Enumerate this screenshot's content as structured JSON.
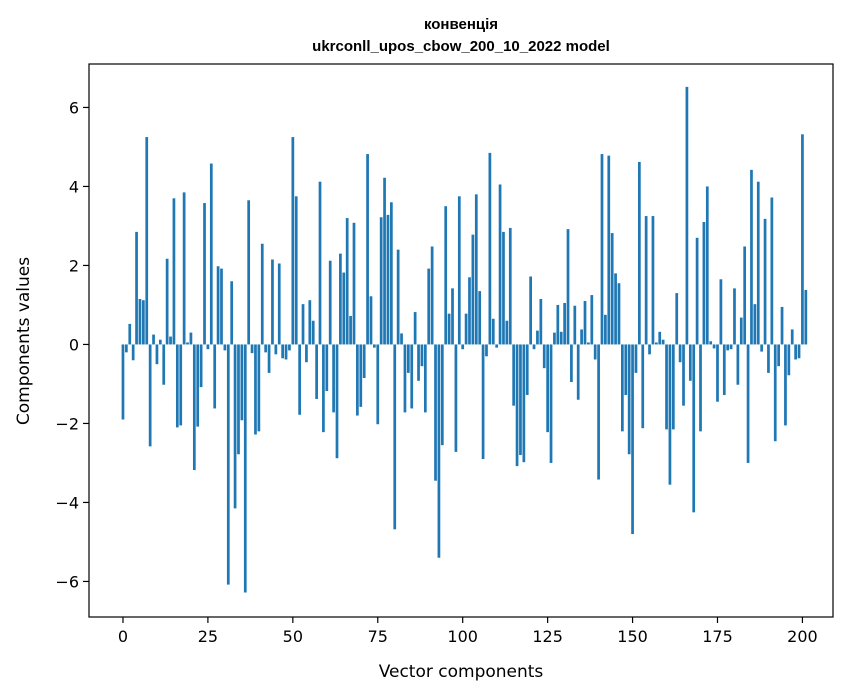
{
  "chart_data": {
    "type": "bar",
    "title": "конвенція",
    "subtitle": "ukrconll_upos_cbow_200_10_2022 model",
    "xlabel": "Vector components",
    "ylabel": "Components values",
    "xlim": [
      -10,
      209
    ],
    "ylim": [
      -6.9,
      7.1
    ],
    "xticks": [
      0,
      25,
      50,
      75,
      100,
      125,
      150,
      175,
      200
    ],
    "yticks": [
      -6,
      -4,
      -2,
      0,
      2,
      4,
      6
    ],
    "xtick_labels": [
      "0",
      "25",
      "50",
      "75",
      "100",
      "125",
      "150",
      "175",
      "200"
    ],
    "ytick_labels": [
      "−6",
      "−4",
      "−2",
      "0",
      "2",
      "4",
      "6"
    ],
    "bar_color": "#1f77b4",
    "grid": false,
    "legend": false,
    "values": [
      -1.9,
      -0.2,
      0.52,
      -0.4,
      2.85,
      1.15,
      1.12,
      5.25,
      -2.58,
      0.25,
      -0.5,
      0.12,
      -1.02,
      2.17,
      0.2,
      3.7,
      -2.1,
      -2.05,
      3.85,
      0.05,
      0.3,
      -3.18,
      -2.08,
      -1.08,
      3.58,
      -0.12,
      4.58,
      -1.62,
      1.98,
      1.92,
      -0.15,
      -6.08,
      1.6,
      -4.15,
      -2.78,
      -1.92,
      -6.28,
      3.65,
      -0.22,
      -2.28,
      -2.2,
      2.55,
      -0.2,
      -0.72,
      2.15,
      -0.25,
      2.05,
      -0.35,
      -0.38,
      -0.15,
      5.25,
      3.75,
      -1.78,
      1.02,
      -0.45,
      1.12,
      0.6,
      -1.38,
      4.12,
      -2.22,
      -1.18,
      2.12,
      -1.72,
      -2.88,
      2.3,
      1.82,
      3.2,
      0.72,
      3.08,
      -1.8,
      -1.58,
      -0.85,
      4.82,
      1.22,
      -0.08,
      -2.02,
      3.22,
      4.22,
      3.28,
      3.6,
      -4.68,
      2.4,
      0.28,
      -1.72,
      -0.72,
      -1.62,
      0.82,
      -0.92,
      -0.55,
      -1.72,
      1.92,
      2.48,
      -3.45,
      -5.4,
      -2.55,
      3.5,
      0.78,
      1.42,
      -2.72,
      3.75,
      -0.12,
      0.78,
      1.7,
      2.78,
      3.8,
      1.35,
      -2.9,
      -0.3,
      4.85,
      0.65,
      -0.08,
      4.05,
      2.85,
      0.6,
      2.95,
      -1.55,
      -3.08,
      -2.8,
      -2.98,
      -1.28,
      1.72,
      -0.12,
      0.35,
      1.15,
      -0.6,
      -2.22,
      -3.0,
      0.3,
      1.0,
      0.32,
      1.05,
      2.92,
      -0.95,
      0.98,
      -1.4,
      0.38,
      1.1,
      0.05,
      1.25,
      -0.38,
      -3.42,
      4.82,
      0.75,
      4.78,
      2.82,
      1.8,
      1.55,
      -2.2,
      -1.28,
      -2.78,
      -4.8,
      -0.72,
      4.62,
      -2.12,
      3.25,
      -0.25,
      3.25,
      0.05,
      0.32,
      0.12,
      -2.15,
      -3.55,
      -2.15,
      1.3,
      -0.45,
      -1.55,
      6.52,
      -0.92,
      -4.25,
      2.7,
      -2.2,
      3.1,
      4.0,
      0.08,
      -0.1,
      -1.45,
      1.65,
      -1.28,
      -0.15,
      -0.12,
      1.42,
      -1.02,
      0.68,
      2.48,
      -3.0,
      4.42,
      1.02,
      4.12,
      -0.18,
      3.18,
      -0.72,
      3.72,
      -2.45,
      -0.55,
      0.95,
      -2.05,
      -0.78,
      0.38,
      -0.38,
      -0.35,
      5.32,
      1.38
    ]
  }
}
